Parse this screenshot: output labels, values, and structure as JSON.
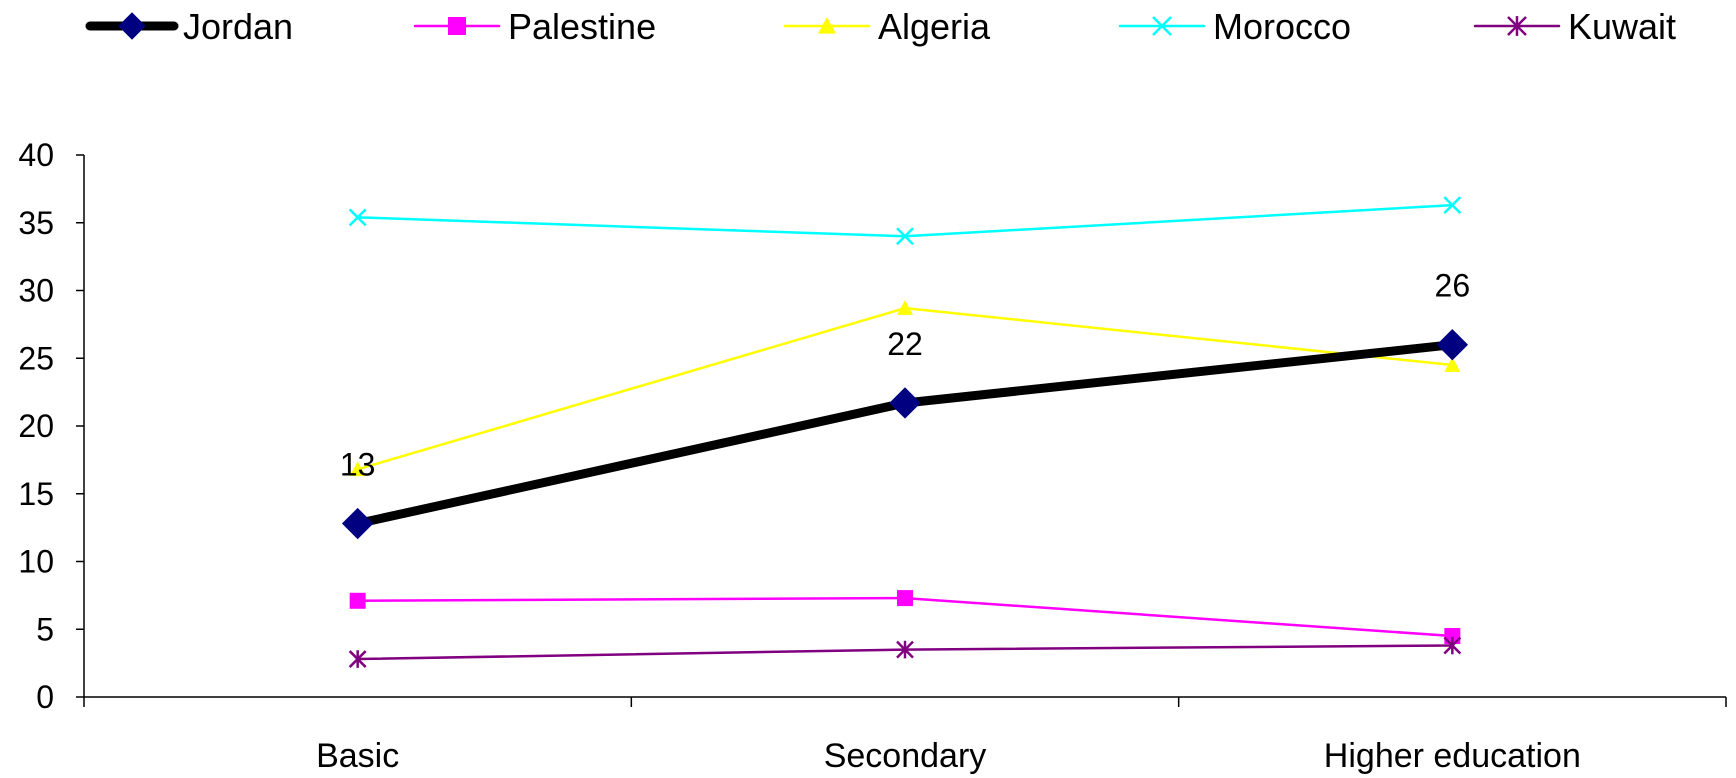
{
  "chart_data": {
    "type": "line",
    "title": "",
    "xlabel": "",
    "ylabel": "",
    "categories": [
      "Basic",
      "Secondary",
      "Higher education"
    ],
    "ylim": [
      0,
      40
    ],
    "yticks": [
      0,
      5,
      10,
      15,
      20,
      25,
      30,
      35,
      40
    ],
    "grid": false,
    "legend_position": "top",
    "series": [
      {
        "name": "Jordan",
        "values": [
          12.8,
          21.7,
          26.0
        ],
        "color": "#000000",
        "marker": "diamond",
        "marker_color": "#000080",
        "emphasis": true,
        "data_labels": [
          "13",
          "22",
          "26"
        ]
      },
      {
        "name": "Palestine",
        "values": [
          7.1,
          7.3,
          4.5
        ],
        "color": "#FF00FF",
        "marker": "square",
        "marker_color": "#FF00FF"
      },
      {
        "name": "Algeria",
        "values": [
          16.8,
          28.7,
          24.5
        ],
        "color": "#FFFF00",
        "marker": "triangle",
        "marker_color": "#FFFF00"
      },
      {
        "name": "Morocco",
        "values": [
          35.4,
          34.0,
          36.3
        ],
        "color": "#00FFFF",
        "marker": "x",
        "marker_color": "#00FFFF"
      },
      {
        "name": "Kuwait",
        "values": [
          2.8,
          3.5,
          3.8
        ],
        "color": "#800080",
        "marker": "star",
        "marker_color": "#800080"
      }
    ]
  }
}
